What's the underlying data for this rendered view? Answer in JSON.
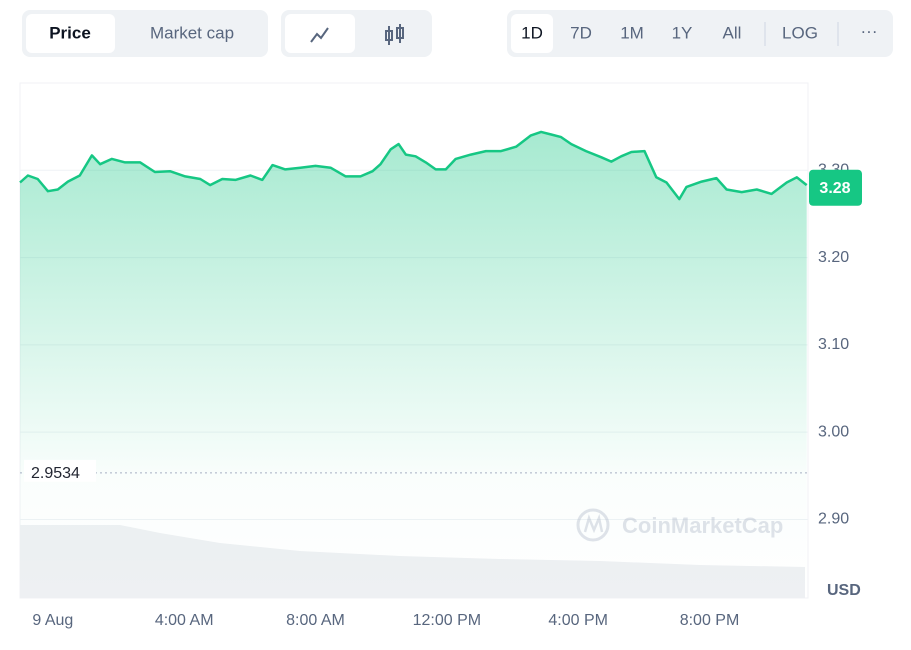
{
  "controls": {
    "metric": [
      "Price",
      "Market cap"
    ],
    "range": [
      "1D",
      "7D",
      "1M",
      "1Y",
      "All"
    ],
    "scale": "LOG",
    "more": "···"
  },
  "chart_data": {
    "type": "line",
    "color": "#16c784",
    "x": [
      -1.0,
      -0.76,
      -0.46,
      -0.15,
      0.15,
      0.46,
      0.82,
      1.19,
      1.44,
      1.8,
      2.2,
      2.66,
      3.11,
      3.57,
      4.03,
      4.49,
      4.79,
      5.16,
      5.56,
      6.02,
      6.38,
      6.69,
      7.08,
      7.54,
      8.0,
      8.46,
      8.92,
      9.37,
      9.74,
      9.98,
      10.29,
      10.53,
      10.75,
      11.05,
      11.36,
      11.66,
      11.97,
      12.27,
      12.73,
      13.19,
      13.65,
      14.11,
      14.56,
      14.87,
      15.18,
      15.48,
      15.79,
      16.24,
      16.7,
      17.01,
      17.31,
      17.62,
      18.02,
      18.38,
      18.69,
      19.08,
      19.3,
      19.76,
      20.21,
      20.52,
      20.98,
      21.44,
      21.89,
      22.35,
      22.66,
      22.96
    ],
    "values": [
      3.286,
      3.294,
      3.29,
      3.276,
      3.278,
      3.287,
      3.294,
      3.317,
      3.307,
      3.313,
      3.309,
      3.309,
      3.298,
      3.299,
      3.293,
      3.29,
      3.283,
      3.29,
      3.289,
      3.294,
      3.289,
      3.306,
      3.301,
      3.303,
      3.305,
      3.303,
      3.293,
      3.293,
      3.299,
      3.307,
      3.324,
      3.33,
      3.318,
      3.316,
      3.309,
      3.301,
      3.301,
      3.313,
      3.318,
      3.322,
      3.322,
      3.327,
      3.34,
      3.344,
      3.341,
      3.338,
      3.33,
      3.322,
      3.315,
      3.31,
      3.316,
      3.321,
      3.322,
      3.292,
      3.286,
      3.267,
      3.281,
      3.287,
      3.291,
      3.278,
      3.275,
      3.278,
      3.273,
      3.286,
      3.292,
      3.283
    ],
    "xlim": [
      -1,
      23
    ],
    "xticks": [
      {
        "value": 0,
        "label": "9 Aug"
      },
      {
        "value": 4,
        "label": "4:00 AM"
      },
      {
        "value": 8,
        "label": "8:00 AM"
      },
      {
        "value": 12,
        "label": "12:00 PM"
      },
      {
        "value": 16,
        "label": "4:00 PM"
      },
      {
        "value": 20,
        "label": "8:00 PM"
      }
    ],
    "ylim": [
      2.81,
      3.4
    ],
    "yticks": [
      {
        "value": 2.9,
        "label": "2.90"
      },
      {
        "value": 3.0,
        "label": "3.00"
      },
      {
        "value": 3.1,
        "label": "3.10"
      },
      {
        "value": 3.2,
        "label": "3.20"
      },
      {
        "value": 3.3,
        "label": "3.30"
      }
    ],
    "grid": true,
    "last_price": 3.28,
    "reference_price": 2.9534,
    "currency": "USD",
    "watermark": "CoinMarketCap"
  }
}
